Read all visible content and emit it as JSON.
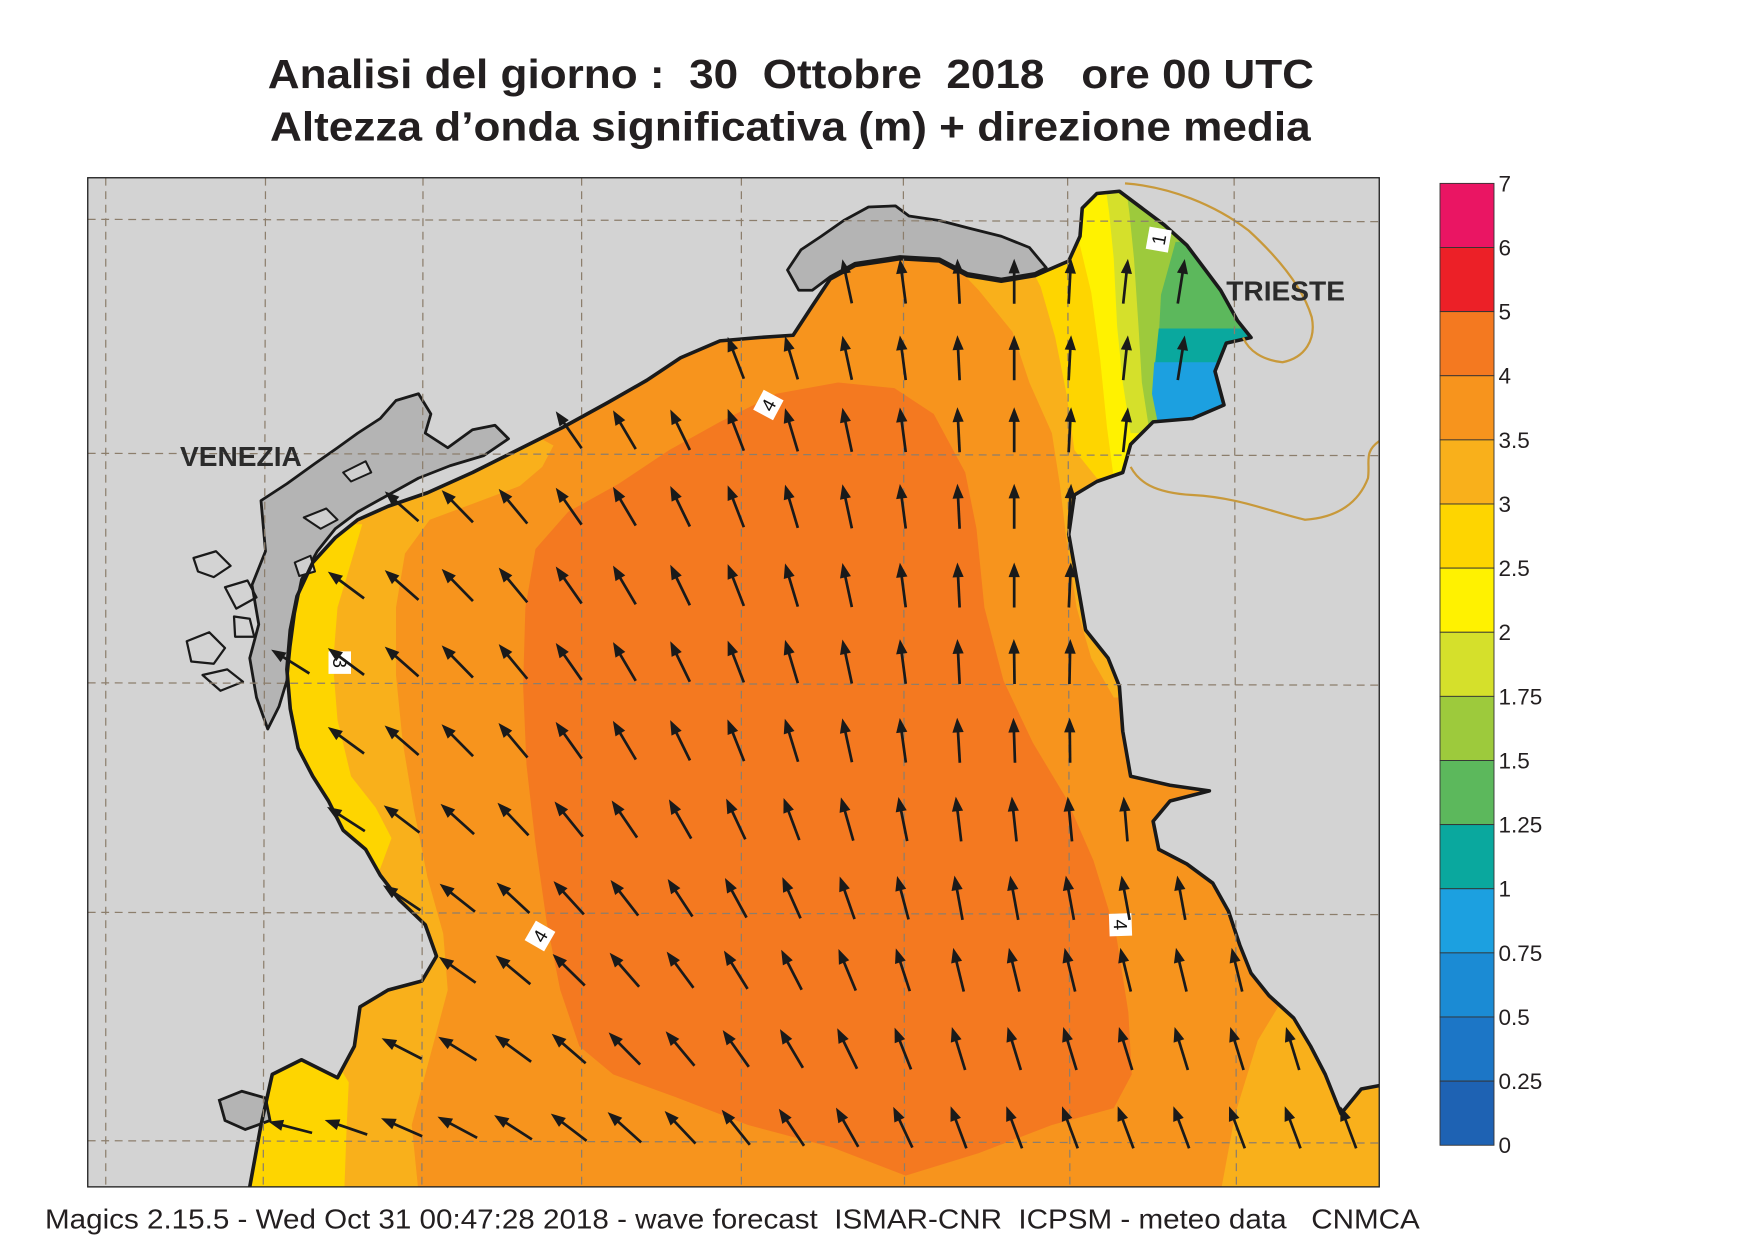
{
  "title": {
    "line1": "Analisi del giorno :  30  Ottobre  2018   ore 00 UTC",
    "line2": "Altezza d’onda significativa (m) + direzione media"
  },
  "map_labels": {
    "venezia": "VENEZIA",
    "trieste": "TRIESTE"
  },
  "contour_labels": [
    "4",
    "4",
    "4",
    "1",
    "3"
  ],
  "colorbar": {
    "labels": [
      "7",
      "6",
      "5",
      "4",
      "3.5",
      "3",
      "2.5",
      "2",
      "1.75",
      "1.5",
      "1.25",
      "1",
      "0.75",
      "0.5",
      "0.25",
      "0"
    ],
    "colors": [
      "#ea1563",
      "#ec2027",
      "#f47920",
      "#f7941d",
      "#f9b01b",
      "#fed500",
      "#fff200",
      "#d5e02b",
      "#9dca3c",
      "#5cb85c",
      "#0aa89e",
      "#1ca0e0",
      "#1b8bd4",
      "#1c76c6",
      "#1e62b3"
    ]
  },
  "map_colors": {
    "land": "#d3d3d3",
    "lagoon": "#b4b4b4",
    "coastline": "#1a1a1a",
    "border": "#c8993a",
    "grid": "#8c7e6c",
    "arrow": "#1a1a1a"
  },
  "footer": "Magics 2.15.5 - Wed Oct 31 00:47:28 2018 - wave forecast  ISMAR-CNR  ICPSM - meteo data   CNMCA"
}
